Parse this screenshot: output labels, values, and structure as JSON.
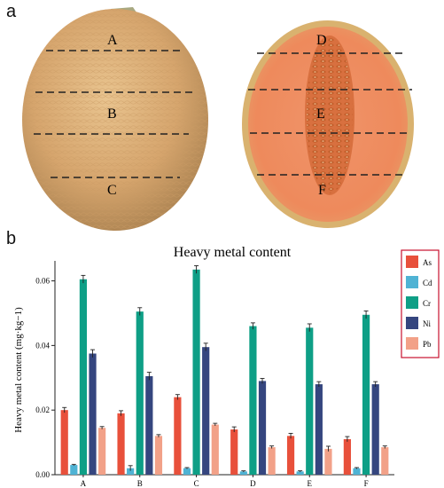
{
  "panels": {
    "a": "a",
    "b": "b"
  },
  "photo": {
    "whole_melon_labels": [
      "A",
      "B",
      "C"
    ],
    "cut_melon_labels": [
      "D",
      "E",
      "F"
    ]
  },
  "colors": {
    "As": "#e8503b",
    "Cd": "#4fb3d4",
    "Cr": "#0e9f86",
    "Ni": "#35467f",
    "Pb": "#f2a188",
    "legend_border": "#c8102e"
  },
  "chart_data": {
    "type": "bar",
    "title": "Heavy metal content",
    "xlabel": "",
    "ylabel": "Heavy metal content (mg·kg−1)",
    "categories": [
      "A",
      "B",
      "C",
      "D",
      "E",
      "F"
    ],
    "ylim": [
      0,
      0.064
    ],
    "yticks": [
      "0.00",
      "0.02",
      "0.04",
      "0.06"
    ],
    "legend_position": "top-right",
    "series": [
      {
        "name": "As",
        "values": [
          0.02,
          0.019,
          0.024,
          0.014,
          0.012,
          0.011
        ],
        "errors": [
          0.0008,
          0.0008,
          0.0008,
          0.0008,
          0.0008,
          0.0008
        ]
      },
      {
        "name": "Cd",
        "values": [
          0.003,
          0.002,
          0.002,
          0.001,
          0.001,
          0.002
        ],
        "errors": [
          0.0002,
          0.0008,
          0.0002,
          0.0002,
          0.0002,
          0.0002
        ]
      },
      {
        "name": "Cr",
        "values": [
          0.0605,
          0.0505,
          0.0635,
          0.046,
          0.0455,
          0.0495
        ],
        "errors": [
          0.0012,
          0.0012,
          0.0012,
          0.001,
          0.0012,
          0.0012
        ]
      },
      {
        "name": "Ni",
        "values": [
          0.0375,
          0.0305,
          0.0395,
          0.029,
          0.028,
          0.028
        ],
        "errors": [
          0.0012,
          0.0012,
          0.0012,
          0.0008,
          0.0008,
          0.0008
        ]
      },
      {
        "name": "Pb",
        "values": [
          0.0145,
          0.012,
          0.0155,
          0.0085,
          0.008,
          0.0085
        ],
        "errors": [
          0.0004,
          0.0004,
          0.0004,
          0.0004,
          0.0008,
          0.0004
        ]
      }
    ]
  }
}
